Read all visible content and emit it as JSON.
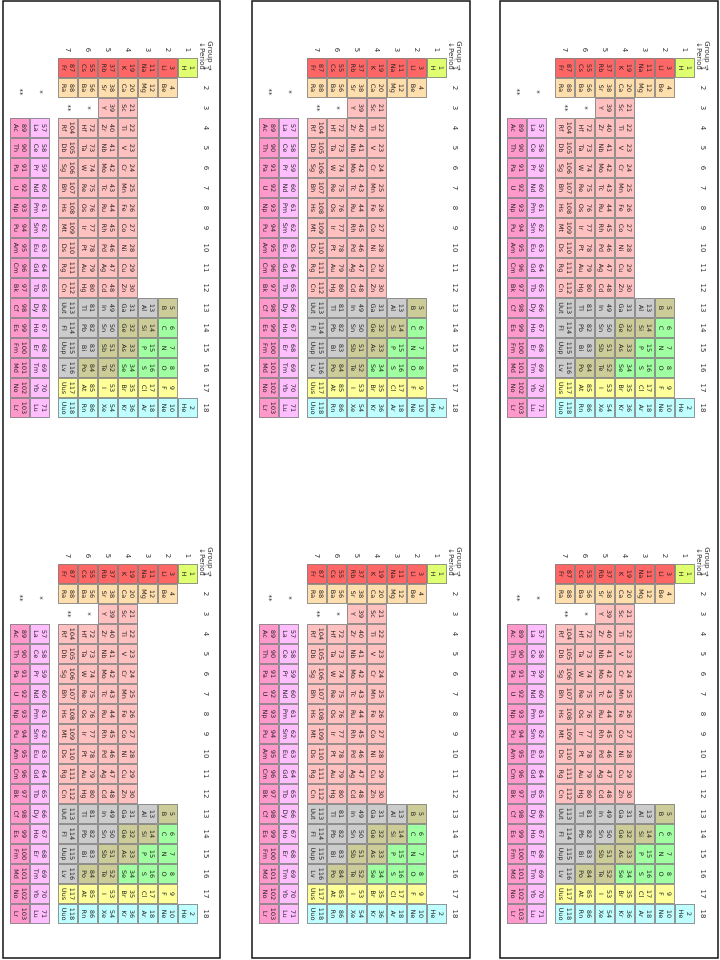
{
  "table": {
    "corner": [
      "Group →",
      "↓Period"
    ],
    "groups": [
      1,
      2,
      3,
      4,
      5,
      6,
      7,
      8,
      9,
      10,
      11,
      12,
      13,
      14,
      15,
      16,
      17,
      18
    ],
    "periods": [
      1,
      2,
      3,
      4,
      5,
      6,
      7
    ],
    "markers": [
      "*",
      "**"
    ],
    "elements": [
      [
        1,
        "H"
      ],
      [
        2,
        "He"
      ],
      [
        3,
        "Li"
      ],
      [
        4,
        "Be"
      ],
      [
        5,
        "B"
      ],
      [
        6,
        "C"
      ],
      [
        7,
        "N"
      ],
      [
        8,
        "O"
      ],
      [
        9,
        "F"
      ],
      [
        10,
        "Ne"
      ],
      [
        11,
        "Na"
      ],
      [
        12,
        "Mg"
      ],
      [
        13,
        "Al"
      ],
      [
        14,
        "Si"
      ],
      [
        15,
        "P"
      ],
      [
        16,
        "S"
      ],
      [
        17,
        "Cl"
      ],
      [
        18,
        "Ar"
      ],
      [
        19,
        "K"
      ],
      [
        20,
        "Ca"
      ],
      [
        21,
        "Sc"
      ],
      [
        22,
        "Ti"
      ],
      [
        23,
        "V"
      ],
      [
        24,
        "Cr"
      ],
      [
        25,
        "Mn"
      ],
      [
        26,
        "Fe"
      ],
      [
        27,
        "Co"
      ],
      [
        28,
        "Ni"
      ],
      [
        29,
        "Cu"
      ],
      [
        30,
        "Zn"
      ],
      [
        31,
        "Ga"
      ],
      [
        32,
        "Ge"
      ],
      [
        33,
        "As"
      ],
      [
        34,
        "Se"
      ],
      [
        35,
        "Br"
      ],
      [
        36,
        "Kr"
      ],
      [
        37,
        "Rb"
      ],
      [
        38,
        "Sr"
      ],
      [
        39,
        "Y"
      ],
      [
        40,
        "Zr"
      ],
      [
        41,
        "Nb"
      ],
      [
        42,
        "Mo"
      ],
      [
        43,
        "Tc"
      ],
      [
        44,
        "Ru"
      ],
      [
        45,
        "Rh"
      ],
      [
        46,
        "Pd"
      ],
      [
        47,
        "Ag"
      ],
      [
        48,
        "Cd"
      ],
      [
        49,
        "In"
      ],
      [
        50,
        "Sn"
      ],
      [
        51,
        "Sb"
      ],
      [
        52,
        "Te"
      ],
      [
        53,
        "I"
      ],
      [
        54,
        "Xe"
      ],
      [
        55,
        "Cs"
      ],
      [
        56,
        "Ba"
      ],
      [
        57,
        "La"
      ],
      [
        58,
        "Ce"
      ],
      [
        59,
        "Pr"
      ],
      [
        60,
        "Nd"
      ],
      [
        61,
        "Pm"
      ],
      [
        62,
        "Sm"
      ],
      [
        63,
        "Eu"
      ],
      [
        64,
        "Gd"
      ],
      [
        65,
        "Tb"
      ],
      [
        66,
        "Dy"
      ],
      [
        67,
        "Ho"
      ],
      [
        68,
        "Er"
      ],
      [
        69,
        "Tm"
      ],
      [
        70,
        "Yb"
      ],
      [
        71,
        "Lu"
      ],
      [
        72,
        "Hf"
      ],
      [
        73,
        "Ta"
      ],
      [
        74,
        "W"
      ],
      [
        75,
        "Re"
      ],
      [
        76,
        "Os"
      ],
      [
        77,
        "Ir"
      ],
      [
        78,
        "Pt"
      ],
      [
        79,
        "Au"
      ],
      [
        80,
        "Hg"
      ],
      [
        81,
        "Tl"
      ],
      [
        82,
        "Pb"
      ],
      [
        83,
        "Bi"
      ],
      [
        84,
        "Po"
      ],
      [
        85,
        "At"
      ],
      [
        86,
        "Rn"
      ],
      [
        87,
        "Fr"
      ],
      [
        88,
        "Ra"
      ],
      [
        89,
        "Ac"
      ],
      [
        90,
        "Th"
      ],
      [
        91,
        "Pa"
      ],
      [
        92,
        "U"
      ],
      [
        93,
        "Np"
      ],
      [
        94,
        "Pu"
      ],
      [
        95,
        "Am"
      ],
      [
        96,
        "Cm"
      ],
      [
        97,
        "Bk"
      ],
      [
        98,
        "Cf"
      ],
      [
        99,
        "Es"
      ],
      [
        100,
        "Fm"
      ],
      [
        101,
        "Md"
      ],
      [
        102,
        "No"
      ],
      [
        103,
        "Lr"
      ],
      [
        104,
        "Rf"
      ],
      [
        105,
        "Db"
      ],
      [
        106,
        "Sg"
      ],
      [
        107,
        "Bh"
      ],
      [
        108,
        "Hs"
      ],
      [
        109,
        "Mt"
      ],
      [
        110,
        "Ds"
      ],
      [
        111,
        "Rg"
      ],
      [
        112,
        "Cn"
      ],
      [
        113,
        "Uut"
      ],
      [
        114,
        "Fl"
      ],
      [
        115,
        "Uup"
      ],
      [
        116,
        "Lv"
      ],
      [
        117,
        "Uus"
      ],
      [
        118,
        "Uuo"
      ]
    ]
  }
}
